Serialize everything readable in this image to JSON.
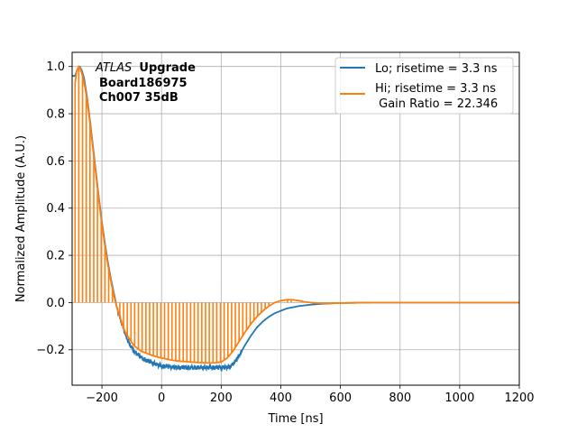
{
  "chart_data": {
    "type": "line",
    "xlabel": "Time [ns]",
    "ylabel": "Normalized Amplitude (A.U.)",
    "xlim": [
      -300,
      1200
    ],
    "ylim": [
      -0.35,
      1.06
    ],
    "xticks": [
      -200,
      0,
      200,
      400,
      600,
      800,
      1000,
      1200
    ],
    "yticks": [
      -0.2,
      0.0,
      0.2,
      0.4,
      0.6,
      0.8,
      1.0
    ],
    "xtick_labels": [
      "−200",
      "0",
      "200",
      "400",
      "600",
      "800",
      "1000",
      "1200"
    ],
    "ytick_labels": [
      "−0.2",
      "0.0",
      "0.2",
      "0.4",
      "0.6",
      "0.8",
      "1.0"
    ],
    "grid": true,
    "legend_position": "top-right",
    "annotation": {
      "atlas": "ATLAS",
      "upgrade": "Upgrade",
      "board": "Board186975",
      "channel": "Ch007 35dB"
    },
    "series": [
      {
        "name": "Lo; risetime = 3.3 ns",
        "color": "#1f77b4",
        "x": [
          -290,
          -282,
          -275,
          -268,
          -260,
          -250,
          -240,
          -230,
          -220,
          -210,
          -200,
          -190,
          -180,
          -170,
          -160,
          -150,
          -140,
          -130,
          -120,
          -110,
          -100,
          -90,
          -80,
          -70,
          -60,
          -50,
          -40,
          -30,
          -20,
          -10,
          0,
          20,
          40,
          60,
          80,
          100,
          120,
          140,
          160,
          180,
          200,
          210,
          220,
          230,
          240,
          250,
          260,
          280,
          300,
          320,
          340,
          360,
          380,
          400,
          420,
          440,
          460,
          480,
          500,
          520,
          540,
          560,
          580,
          600,
          650,
          700,
          800,
          900,
          1000,
          1100,
          1200
        ],
        "y": [
          0.96,
          0.99,
          1.0,
          0.985,
          0.95,
          0.87,
          0.77,
          0.66,
          0.55,
          0.44,
          0.34,
          0.25,
          0.17,
          0.1,
          0.04,
          -0.02,
          -0.06,
          -0.1,
          -0.14,
          -0.17,
          -0.19,
          -0.21,
          -0.22,
          -0.23,
          -0.24,
          -0.245,
          -0.25,
          -0.255,
          -0.26,
          -0.265,
          -0.27,
          -0.27,
          -0.275,
          -0.275,
          -0.275,
          -0.275,
          -0.275,
          -0.275,
          -0.275,
          -0.275,
          -0.275,
          -0.275,
          -0.275,
          -0.27,
          -0.26,
          -0.245,
          -0.225,
          -0.18,
          -0.14,
          -0.105,
          -0.08,
          -0.06,
          -0.045,
          -0.035,
          -0.025,
          -0.02,
          -0.015,
          -0.012,
          -0.009,
          -0.007,
          -0.005,
          -0.004,
          -0.003,
          -0.002,
          -0.001,
          0.0,
          0.0,
          0.0,
          0.0,
          0.0,
          0.0
        ]
      },
      {
        "name": "Hi; risetime = 3.3 ns",
        "name_line2": " Gain Ratio = 22.346",
        "color": "#ff7f0e",
        "x": [
          -290,
          -285,
          -278,
          -272,
          -265,
          -258,
          -250,
          -240,
          -230,
          -220,
          -210,
          -200,
          -190,
          -180,
          -170,
          -160,
          -150,
          -140,
          -130,
          -120,
          -110,
          -100,
          -90,
          -80,
          -70,
          -60,
          -50,
          -40,
          -30,
          -20,
          -10,
          0,
          20,
          40,
          60,
          80,
          100,
          120,
          140,
          160,
          180,
          200,
          220,
          240,
          260,
          280,
          300,
          320,
          340,
          360,
          380,
          400,
          420,
          440,
          460,
          480,
          500,
          520,
          540,
          560,
          600,
          650,
          700,
          800,
          900,
          1000,
          1100,
          1200
        ],
        "y": [
          0.93,
          0.98,
          1.0,
          0.99,
          0.96,
          0.92,
          0.86,
          0.76,
          0.65,
          0.54,
          0.43,
          0.33,
          0.24,
          0.16,
          0.09,
          0.03,
          -0.02,
          -0.06,
          -0.1,
          -0.13,
          -0.15,
          -0.17,
          -0.185,
          -0.195,
          -0.205,
          -0.21,
          -0.215,
          -0.22,
          -0.225,
          -0.228,
          -0.232,
          -0.235,
          -0.24,
          -0.245,
          -0.248,
          -0.25,
          -0.252,
          -0.254,
          -0.255,
          -0.256,
          -0.255,
          -0.252,
          -0.235,
          -0.205,
          -0.165,
          -0.125,
          -0.09,
          -0.06,
          -0.035,
          -0.015,
          0.0,
          0.008,
          0.012,
          0.012,
          0.008,
          0.003,
          0.0,
          -0.002,
          -0.003,
          -0.003,
          -0.002,
          -0.001,
          0.0,
          0.0,
          0.0,
          0.0,
          0.0,
          0.0
        ]
      }
    ]
  }
}
